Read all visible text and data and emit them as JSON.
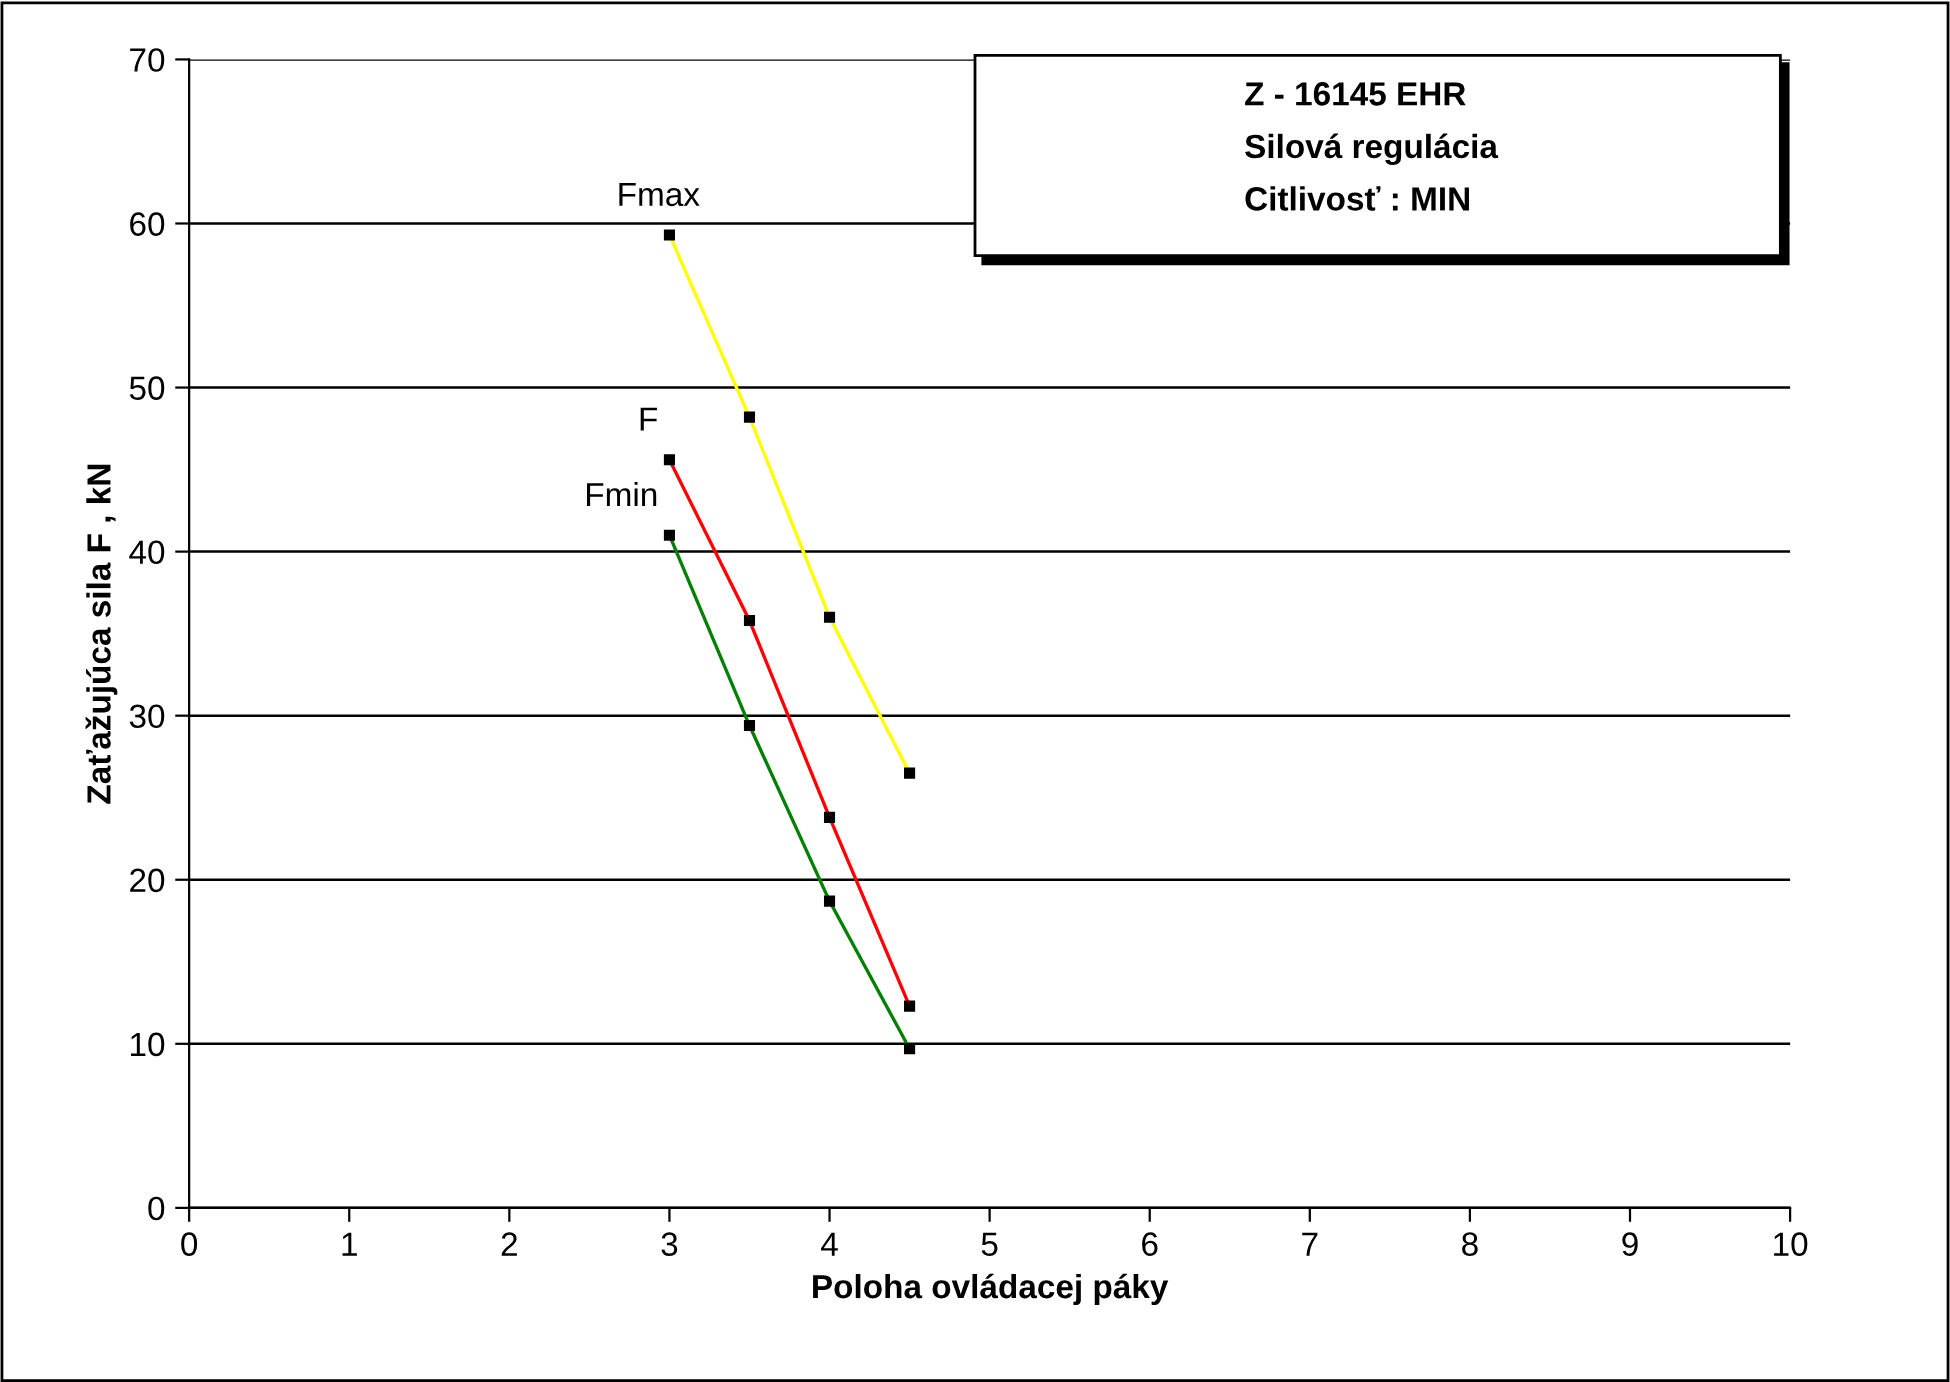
{
  "chart_data": {
    "type": "line",
    "title": "Z - 16145 EHR",
    "annotations": [
      "Silová regulácia",
      "Citlivosť : MIN"
    ],
    "xlabel": "Poloha ovládacej páky",
    "ylabel": "Zaťažujúca sila F , kN",
    "x": [
      3,
      3.5,
      4,
      4.5
    ],
    "series": [
      {
        "name": "Fmax",
        "color": "#ffff00",
        "values": [
          59.3,
          48.2,
          36.0,
          26.5
        ]
      },
      {
        "name": "F",
        "color": "#ff0000",
        "values": [
          45.6,
          35.8,
          23.8,
          12.3
        ]
      },
      {
        "name": "Fmin",
        "color": "#008000",
        "values": [
          41.0,
          29.4,
          18.7,
          9.7
        ]
      }
    ],
    "xlim": [
      0,
      10
    ],
    "xticks": [
      0,
      1,
      2,
      3,
      4,
      5,
      6,
      7,
      8,
      9,
      10
    ],
    "ylim": [
      0,
      70
    ],
    "yticks": [
      0,
      10,
      20,
      30,
      40,
      50,
      60,
      70
    ],
    "grid": "y",
    "legend": false,
    "marker": "square",
    "line_style": "solid"
  }
}
